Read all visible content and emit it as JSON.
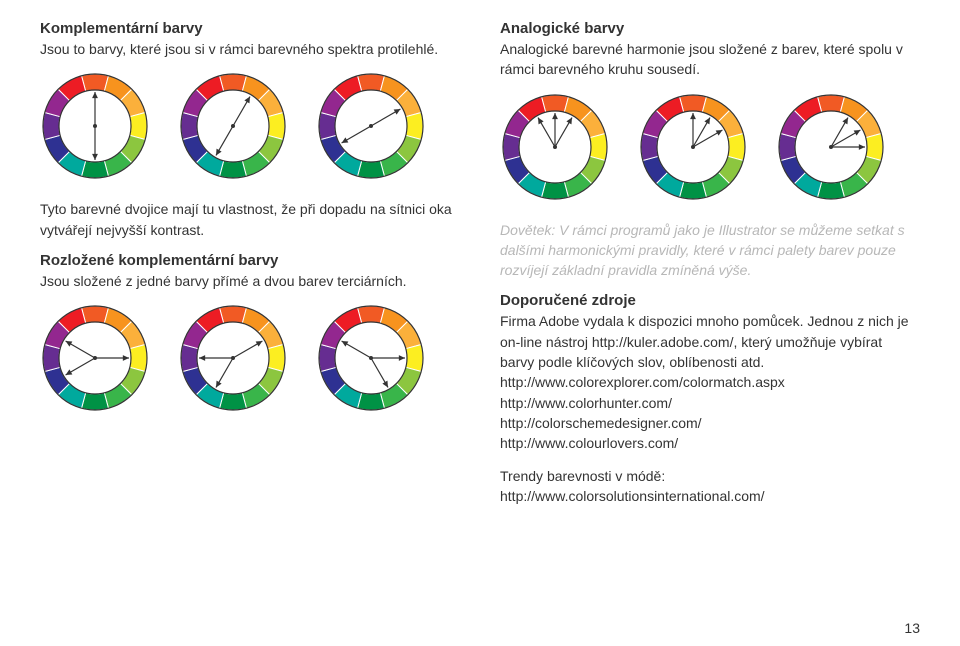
{
  "wheel": {
    "colors": [
      "#f15a24",
      "#f7931e",
      "#fbb03b",
      "#fcee21",
      "#8cc63f",
      "#39b54a",
      "#009245",
      "#00a99d",
      "#2e3192",
      "#662d91",
      "#93278f",
      "#ed1c24"
    ],
    "radius_outer": 52,
    "radius_inner": 36,
    "stroke_color": "#333333",
    "stroke_width": 1.2,
    "marker_len": 34
  },
  "left": {
    "section1": {
      "title": "Komplementární barvy",
      "body": "Jsou to barvy, které jsou si v rámci barevného spektra protilehlé.",
      "wheels": [
        {
          "markers": [
            0,
            180
          ]
        },
        {
          "markers": [
            30,
            210
          ]
        },
        {
          "markers": [
            60,
            240
          ]
        }
      ]
    },
    "section2": {
      "body1": "Tyto barevné dvojice mají tu vlastnost, že při dopadu na sítnici oka vytvářejí nejvyšší kontrast.",
      "title": "Rozložené komplementární barvy",
      "body2": "Jsou složené z jedné barvy přímé a dvou barev terciárních.",
      "wheels": [
        {
          "markers": [
            90,
            240,
            300
          ]
        },
        {
          "markers": [
            60,
            210,
            270
          ]
        },
        {
          "markers": [
            300,
            90,
            150
          ]
        }
      ]
    }
  },
  "right": {
    "section1": {
      "title": "Analogické barvy",
      "body": "Analogické barevné harmonie jsou složené z barev, které spolu v rámci barevného kruhu sousedí.",
      "wheels": [
        {
          "markers": [
            0,
            30,
            330
          ]
        },
        {
          "markers": [
            30,
            60,
            0
          ]
        },
        {
          "markers": [
            60,
            90,
            30
          ]
        }
      ]
    },
    "section2": {
      "italic": "Dovětek: V rámci programů jako je Illustrator se můžeme setkat s dalšími harmonickými pravidly, které v rámci palety barev pouze rozvíjejí základní pravidla zmíněná výše.",
      "heading": "Doporučené zdroje",
      "body": "Firma Adobe vydala k dispozici mnoho pomůcek. Jednou z nich je on-line nástroj http://kuler.adobe.com/, který umožňuje vybírat barvy podle klíčových slov, oblíbenosti atd.",
      "links": [
        "http://www.colorexplorer.com/colormatch.aspx",
        "http://www.colorhunter.com/",
        "http://colorschemedesigner.com/",
        "http://www.colourlovers.com/"
      ],
      "trend_label": "Trendy barevnosti v módě:",
      "trend_link": "http://www.colorsolutionsinternational.com/"
    }
  },
  "page": "13"
}
